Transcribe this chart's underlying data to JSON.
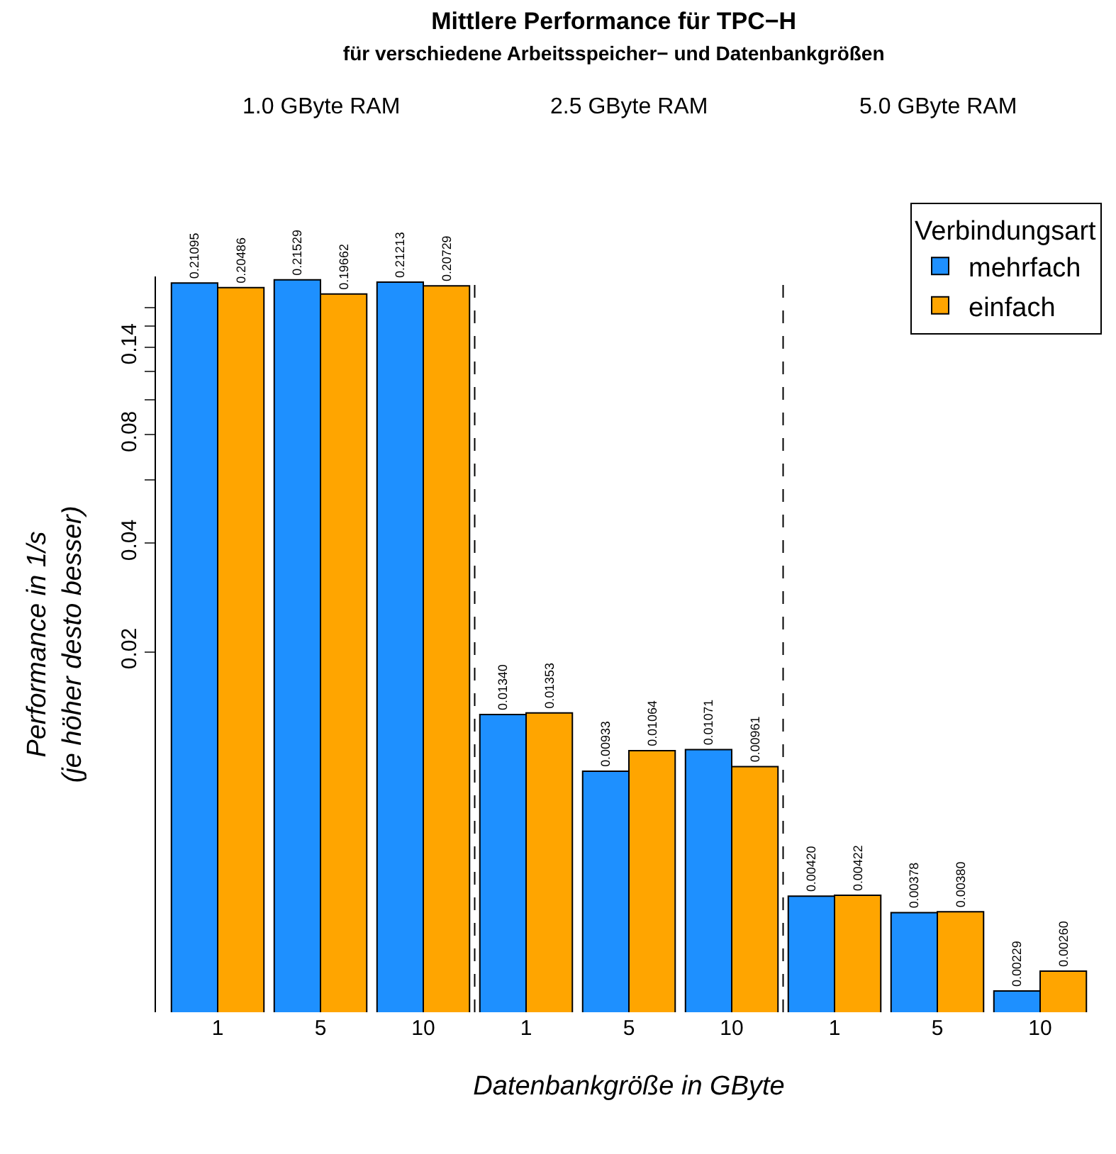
{
  "chart_data": {
    "type": "bar",
    "title": "Mittlere Performance für TPC−H",
    "subtitle": "für verschiedene Arbeitsspeicher− und Datenbankgrößen",
    "xlabel": "Datenbankgröße in GByte",
    "ylabel": "Performance in 1/s\n(je höher desto besser)",
    "legend_title": "Verbindungsart",
    "categories": [
      "1",
      "5",
      "10",
      "1",
      "5",
      "10",
      "1",
      "5",
      "10"
    ],
    "series": [
      {
        "name": "mehrfach",
        "color": "#1e90ff",
        "values": [
          0.21095,
          0.21529,
          0.21213,
          0.0134,
          0.00933,
          0.01071,
          0.0042,
          0.00378,
          0.00229
        ],
        "value_labels": [
          "0.21095",
          "0.21529",
          "0.21213",
          "0.01340",
          "0.00933",
          "0.01071",
          "0.00420",
          "0.00378",
          "0.00229"
        ]
      },
      {
        "name": "einfach",
        "color": "#ffa500",
        "values": [
          0.20486,
          0.19662,
          0.20729,
          0.01353,
          0.01064,
          0.00961,
          0.00422,
          0.0038,
          0.0026
        ],
        "value_labels": [
          "0.20486",
          "0.19662",
          "0.20729",
          "0.01353",
          "0.01064",
          "0.00961",
          "0.00422",
          "0.00380",
          "0.00260"
        ]
      }
    ],
    "annotations": [
      "1.0 GByte RAM",
      "2.5 GByte RAM",
      "5.0 GByte RAM"
    ],
    "log": true,
    "ylim": [
      0.002,
      0.22
    ],
    "yticks": [
      0.02,
      0.04,
      {
        "value": 0.06,
        "label": null
      },
      0.08,
      {
        "value": 0.1,
        "label": null
      },
      {
        "value": 0.12,
        "label": null
      },
      0.14,
      {
        "value": 0.16,
        "label": null
      },
      {
        "value": 0.18,
        "label": null
      }
    ],
    "grid": false,
    "legend": "top right"
  }
}
